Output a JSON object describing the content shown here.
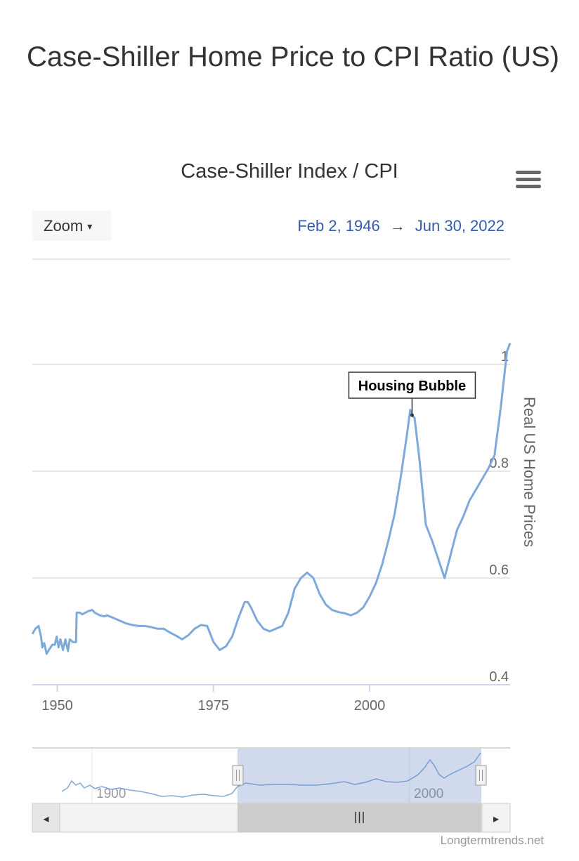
{
  "page": {
    "title": "Case-Shiller Home Price to CPI Ratio (US)"
  },
  "toolbar": {
    "zoom_label": "Zoom",
    "zoom_caret": "▾",
    "menu_icon": "hamburger-icon"
  },
  "range": {
    "from": "Feb 2, 1946",
    "arrow": "→",
    "to": "Jun 30, 2022"
  },
  "credit": "Longtermtrends.net",
  "navigator": {
    "labels": [
      "1900",
      "2000"
    ],
    "handle_glyph": "||",
    "thumb_glyph": "III",
    "left_arrow": "◂",
    "right_arrow": "▸"
  },
  "colors": {
    "series": "#7eaadb",
    "grid": "#e6e6e6",
    "navigator_mask": "rgba(102,133,194,0.3)",
    "date_range": "#335cad"
  },
  "chart_data": {
    "type": "line",
    "title": "Case-Shiller Index / CPI",
    "ylabel": "Real US Home Prices",
    "xlim": [
      1946,
      2022.5
    ],
    "ylim": [
      0.4,
      1.0
    ],
    "x_ticks": [
      1950,
      1975,
      2000
    ],
    "y_ticks": [
      0.4,
      0.6,
      0.8,
      1
    ],
    "y_tick_labels": [
      "0.4",
      "0.6",
      "0.8",
      "1"
    ],
    "grid": true,
    "annotation": {
      "text": "Housing Bubble",
      "x": 2006.8,
      "y": 0.905
    },
    "series": [
      {
        "points": [
          [
            1946.0,
            0.495
          ],
          [
            1946.5,
            0.505
          ],
          [
            1947.0,
            0.51
          ],
          [
            1947.4,
            0.49
          ],
          [
            1947.6,
            0.47
          ],
          [
            1947.9,
            0.478
          ],
          [
            1948.3,
            0.458
          ],
          [
            1948.7,
            0.466
          ],
          [
            1949.2,
            0.475
          ],
          [
            1949.6,
            0.475
          ],
          [
            1949.9,
            0.49
          ],
          [
            1950.2,
            0.47
          ],
          [
            1950.5,
            0.485
          ],
          [
            1950.9,
            0.465
          ],
          [
            1951.3,
            0.485
          ],
          [
            1951.7,
            0.463
          ],
          [
            1952.0,
            0.485
          ],
          [
            1952.5,
            0.48
          ],
          [
            1953.0,
            0.48
          ],
          [
            1953.1,
            0.535
          ],
          [
            1953.6,
            0.535
          ],
          [
            1954.0,
            0.532
          ],
          [
            1954.5,
            0.535
          ],
          [
            1955.0,
            0.538
          ],
          [
            1955.6,
            0.54
          ],
          [
            1956.0,
            0.535
          ],
          [
            1956.8,
            0.53
          ],
          [
            1957.5,
            0.528
          ],
          [
            1958.0,
            0.53
          ],
          [
            1959.0,
            0.525
          ],
          [
            1960.0,
            0.52
          ],
          [
            1961.0,
            0.515
          ],
          [
            1962.0,
            0.512
          ],
          [
            1963.0,
            0.51
          ],
          [
            1964.0,
            0.51
          ],
          [
            1965.0,
            0.508
          ],
          [
            1966.0,
            0.505
          ],
          [
            1967.0,
            0.505
          ],
          [
            1968.0,
            0.498
          ],
          [
            1969.0,
            0.492
          ],
          [
            1970.0,
            0.485
          ],
          [
            1971.0,
            0.493
          ],
          [
            1972.0,
            0.505
          ],
          [
            1973.0,
            0.512
          ],
          [
            1974.0,
            0.51
          ],
          [
            1975.0,
            0.48
          ],
          [
            1976.0,
            0.465
          ],
          [
            1977.0,
            0.472
          ],
          [
            1978.0,
            0.49
          ],
          [
            1979.0,
            0.525
          ],
          [
            1980.0,
            0.555
          ],
          [
            1980.5,
            0.555
          ],
          [
            1981.0,
            0.545
          ],
          [
            1982.0,
            0.52
          ],
          [
            1983.0,
            0.505
          ],
          [
            1984.0,
            0.5
          ],
          [
            1985.0,
            0.505
          ],
          [
            1986.0,
            0.51
          ],
          [
            1987.0,
            0.535
          ],
          [
            1988.0,
            0.58
          ],
          [
            1989.0,
            0.6
          ],
          [
            1990.0,
            0.61
          ],
          [
            1991.0,
            0.6
          ],
          [
            1992.0,
            0.57
          ],
          [
            1993.0,
            0.55
          ],
          [
            1994.0,
            0.54
          ],
          [
            1995.0,
            0.536
          ],
          [
            1996.0,
            0.534
          ],
          [
            1997.0,
            0.53
          ],
          [
            1998.0,
            0.535
          ],
          [
            1999.0,
            0.545
          ],
          [
            2000.0,
            0.565
          ],
          [
            2001.0,
            0.59
          ],
          [
            2002.0,
            0.625
          ],
          [
            2003.0,
            0.67
          ],
          [
            2004.0,
            0.72
          ],
          [
            2005.0,
            0.79
          ],
          [
            2006.0,
            0.87
          ],
          [
            2006.5,
            0.915
          ],
          [
            2006.8,
            0.905
          ],
          [
            2007.2,
            0.9
          ],
          [
            2008.0,
            0.82
          ],
          [
            2009.0,
            0.7
          ],
          [
            2010.0,
            0.67
          ],
          [
            2011.0,
            0.635
          ],
          [
            2012.0,
            0.6
          ],
          [
            2013.0,
            0.645
          ],
          [
            2014.0,
            0.69
          ],
          [
            2015.0,
            0.715
          ],
          [
            2016.0,
            0.745
          ],
          [
            2017.0,
            0.765
          ],
          [
            2018.0,
            0.785
          ],
          [
            2019.0,
            0.805
          ],
          [
            2020.0,
            0.83
          ],
          [
            2021.0,
            0.92
          ],
          [
            2022.0,
            1.025
          ],
          [
            2022.5,
            1.04
          ]
        ]
      }
    ]
  }
}
